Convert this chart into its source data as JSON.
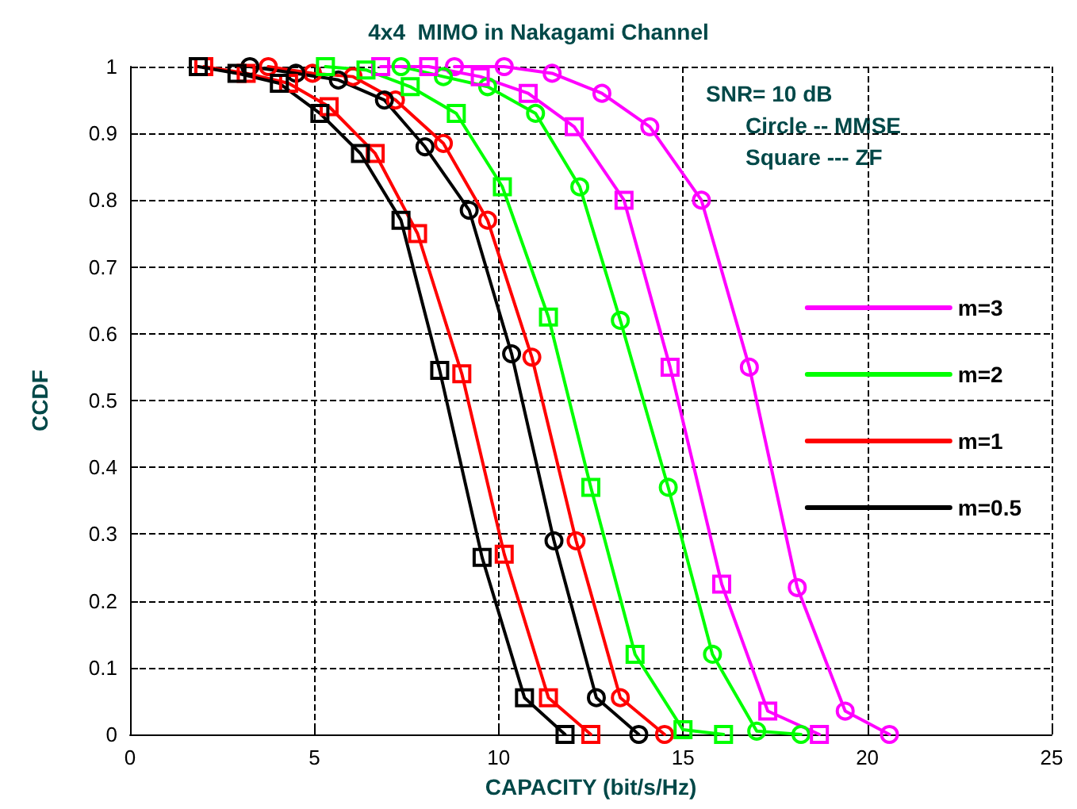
{
  "chart_data": {
    "type": "line",
    "title": "4x4  MIMO in Nakagami Channel",
    "xlabel": "CAPACITY (bit/s/Hz)",
    "ylabel": "CCDF",
    "xlim": [
      0,
      25
    ],
    "xticks": [
      0,
      5,
      10,
      15,
      20,
      25
    ],
    "ylim": [
      0,
      1
    ],
    "yticks": [
      0,
      0.1,
      0.2,
      0.3,
      0.4,
      0.5,
      0.6,
      0.7,
      0.8,
      0.9,
      1
    ],
    "grid": true,
    "legend": "right",
    "line_style": "solid",
    "annotations": [
      "SNR= 10 dB",
      "Circle -- MMSE",
      "Square --- ZF"
    ],
    "series": [
      {
        "name": "m=3",
        "color": "#ff00ff",
        "marker": "circle",
        "x": [
          8.8,
          10.15,
          11.45,
          12.8,
          14.1,
          15.5,
          16.8,
          18.1,
          19.4,
          20.6
        ],
        "values": [
          1.0,
          1.0,
          0.99,
          0.96,
          0.91,
          0.8,
          0.55,
          0.22,
          0.035,
          0.0
        ]
      },
      {
        "name": "m=2",
        "color": "#00ff00",
        "marker": "circle",
        "x": [
          7.35,
          8.5,
          9.7,
          11.0,
          12.2,
          13.3,
          14.6,
          15.8,
          17.0,
          18.2
        ],
        "values": [
          1.0,
          0.985,
          0.97,
          0.93,
          0.82,
          0.62,
          0.37,
          0.12,
          0.005,
          0.0
        ]
      },
      {
        "name": "m=1",
        "color": "#ff0000",
        "marker": "circle",
        "x": [
          3.75,
          4.95,
          6.05,
          7.2,
          8.5,
          9.7,
          10.9,
          12.1,
          13.3,
          14.5
        ],
        "values": [
          1.0,
          0.99,
          0.985,
          0.95,
          0.885,
          0.77,
          0.565,
          0.29,
          0.055,
          0.0
        ]
      },
      {
        "name": "m=0.5",
        "color": "#000000",
        "marker": "circle",
        "x": [
          3.25,
          4.5,
          5.65,
          6.9,
          8.0,
          9.2,
          10.35,
          11.5,
          12.65,
          13.8
        ],
        "values": [
          1.0,
          0.99,
          0.98,
          0.95,
          0.88,
          0.785,
          0.57,
          0.29,
          0.055,
          0.0
        ]
      },
      {
        "color": "#ff00ff",
        "marker": "square",
        "x": [
          6.8,
          8.1,
          9.5,
          10.8,
          12.05,
          13.4,
          14.65,
          16.05,
          17.3,
          18.7
        ],
        "values": [
          1.0,
          1.0,
          0.985,
          0.96,
          0.91,
          0.8,
          0.55,
          0.225,
          0.035,
          0.0
        ]
      },
      {
        "color": "#00ff00",
        "marker": "square",
        "x": [
          5.3,
          6.4,
          7.6,
          8.85,
          10.1,
          11.35,
          12.5,
          13.7,
          15.0,
          16.1
        ],
        "values": [
          1.0,
          0.995,
          0.97,
          0.93,
          0.82,
          0.625,
          0.37,
          0.12,
          0.007,
          0.0
        ]
      },
      {
        "color": "#ff0000",
        "marker": "square",
        "x": [
          2.0,
          3.15,
          4.3,
          5.4,
          6.65,
          7.8,
          9.0,
          10.15,
          11.35,
          12.5
        ],
        "values": [
          1.0,
          0.99,
          0.975,
          0.94,
          0.87,
          0.75,
          0.54,
          0.27,
          0.055,
          0.0
        ]
      },
      {
        "color": "#000000",
        "marker": "square",
        "x": [
          1.85,
          2.9,
          4.05,
          5.15,
          6.25,
          7.35,
          8.4,
          9.55,
          10.7,
          11.8
        ],
        "values": [
          1.0,
          0.99,
          0.975,
          0.93,
          0.87,
          0.77,
          0.545,
          0.265,
          0.055,
          0.0
        ]
      }
    ]
  }
}
